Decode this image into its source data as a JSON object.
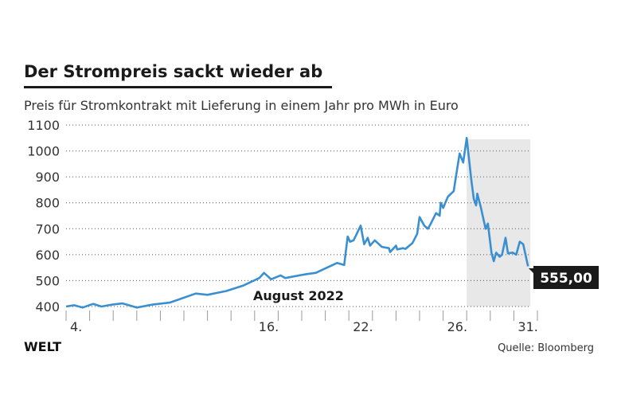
{
  "header": {
    "title": "Der Strompreis sackt wieder ab",
    "subtitle": "Preis für Stromkontrakt mit Lieferung in einem Jahr pro MWh in Euro"
  },
  "footer": {
    "logo": "WELT",
    "source": "Quelle: Bloomberg"
  },
  "colors": {
    "line": "#3a8fd0",
    "shade": "#e8e8e8",
    "label_bg": "#1a1a1a"
  },
  "chart_data": {
    "type": "line",
    "title": "Der Strompreis sackt wieder ab",
    "ylabel": "Preis pro MWh in Euro",
    "xlabel": "August 2022",
    "ylim": [
      400,
      1100
    ],
    "yticks": [
      400,
      500,
      600,
      700,
      800,
      900,
      1000,
      1100
    ],
    "x_unit": "trading-day index from Aug 4",
    "xtick_count": 21,
    "xtick_labels": [
      {
        "i": 0,
        "label": "4."
      },
      {
        "i": 8,
        "label": "16."
      },
      {
        "i": 12,
        "label": "22."
      },
      {
        "i": 16,
        "label": "26."
      },
      {
        "i": 19,
        "label": "31."
      }
    ],
    "grid": true,
    "annotation": "August 2022",
    "shaded_range": [
      17,
      19.7
    ],
    "last_value_label": "555,00",
    "series": [
      {
        "name": "Strompreis",
        "points": [
          [
            0,
            400
          ],
          [
            0.34,
            405
          ],
          [
            0.7,
            396
          ],
          [
            1.15,
            410
          ],
          [
            1.5,
            400
          ],
          [
            2.0,
            408
          ],
          [
            2.4,
            412
          ],
          [
            3.0,
            396
          ],
          [
            3.7,
            408
          ],
          [
            4.4,
            415
          ],
          [
            5.5,
            450
          ],
          [
            6.0,
            445
          ],
          [
            6.8,
            460
          ],
          [
            7.5,
            480
          ],
          [
            8.2,
            510
          ],
          [
            8.4,
            530
          ],
          [
            8.7,
            505
          ],
          [
            9.1,
            520
          ],
          [
            9.3,
            510
          ],
          [
            10.2,
            525
          ],
          [
            10.6,
            530
          ],
          [
            10.95,
            545
          ],
          [
            11.5,
            568
          ],
          [
            11.8,
            560
          ],
          [
            11.95,
            670
          ],
          [
            12.05,
            650
          ],
          [
            12.2,
            655
          ],
          [
            12.5,
            712
          ],
          [
            12.65,
            640
          ],
          [
            12.8,
            665
          ],
          [
            12.9,
            635
          ],
          [
            13.1,
            655
          ],
          [
            13.4,
            630
          ],
          [
            13.7,
            625
          ],
          [
            13.75,
            610
          ],
          [
            14.0,
            635
          ],
          [
            14.05,
            620
          ],
          [
            14.3,
            625
          ],
          [
            14.4,
            622
          ],
          [
            14.7,
            645
          ],
          [
            14.9,
            680
          ],
          [
            15.0,
            745
          ],
          [
            15.2,
            712
          ],
          [
            15.35,
            700
          ],
          [
            15.45,
            715
          ],
          [
            15.7,
            760
          ],
          [
            15.85,
            750
          ],
          [
            15.9,
            800
          ],
          [
            16.0,
            780
          ],
          [
            16.2,
            823
          ],
          [
            16.45,
            845
          ],
          [
            16.55,
            905
          ],
          [
            16.7,
            990
          ],
          [
            16.85,
            955
          ],
          [
            17.0,
            1050
          ],
          [
            17.2,
            885
          ],
          [
            17.3,
            815
          ],
          [
            17.4,
            790
          ],
          [
            17.45,
            835
          ],
          [
            17.6,
            782
          ],
          [
            17.8,
            700
          ],
          [
            17.9,
            720
          ],
          [
            18.05,
            608
          ],
          [
            18.15,
            575
          ],
          [
            18.25,
            608
          ],
          [
            18.4,
            592
          ],
          [
            18.5,
            600
          ],
          [
            18.65,
            665
          ],
          [
            18.75,
            605
          ],
          [
            18.95,
            608
          ],
          [
            19.1,
            600
          ],
          [
            19.25,
            650
          ],
          [
            19.4,
            640
          ],
          [
            19.6,
            555
          ]
        ]
      }
    ]
  }
}
